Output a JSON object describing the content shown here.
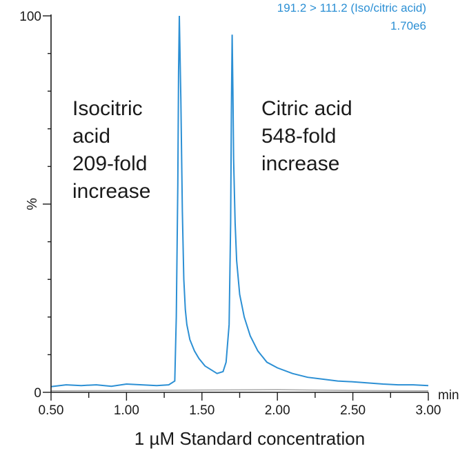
{
  "colors": {
    "trace": "#2b8fd4",
    "baseline": "#a9a9a9",
    "axis": "#1a1a1a"
  },
  "chart_data": {
    "type": "line",
    "title": "",
    "xlabel": "1 µM Standard concentration",
    "x_unit": "min",
    "ylabel": "%",
    "xlim": [
      0.5,
      3.0
    ],
    "ylim": [
      0,
      100
    ],
    "x_tick_labels": [
      "0.50",
      "1.00",
      "1.50",
      "2.00",
      "2.50",
      "3.00"
    ],
    "y_tick_labels": [
      "0",
      "100"
    ],
    "grid": false,
    "trace_label": {
      "transition": "191.2 > 111.2 (Iso/citric acid)",
      "intensity": "1.70e6"
    },
    "annotations": [
      {
        "lines": [
          "Isocitric",
          "acid",
          "209-fold",
          "increase"
        ]
      },
      {
        "lines": [
          "Citric acid",
          "548-fold",
          "increase"
        ]
      }
    ],
    "series": [
      {
        "x": [
          0.5,
          0.6,
          0.7,
          0.8,
          0.9,
          1.0,
          1.1,
          1.2,
          1.28,
          1.32,
          1.33,
          1.34,
          1.345,
          1.35,
          1.36,
          1.37,
          1.38,
          1.39,
          1.4,
          1.42,
          1.45,
          1.48,
          1.52,
          1.56,
          1.6,
          1.64,
          1.66,
          1.68,
          1.69,
          1.695,
          1.7,
          1.705,
          1.71,
          1.72,
          1.73,
          1.75,
          1.78,
          1.82,
          1.87,
          1.93,
          2.0,
          2.1,
          2.2,
          2.3,
          2.4,
          2.5,
          2.6,
          2.7,
          2.8,
          2.9,
          3.0
        ],
        "y": [
          1.5,
          2.0,
          1.8,
          2.0,
          1.6,
          2.2,
          2.0,
          1.8,
          2.0,
          3.0,
          20,
          55,
          85,
          100,
          78,
          48,
          30,
          22,
          18,
          14,
          11,
          9,
          7,
          6,
          5,
          5.5,
          8,
          18,
          45,
          75,
          95,
          80,
          62,
          45,
          35,
          26,
          20,
          15,
          11,
          8,
          6.5,
          5,
          4,
          3.5,
          3,
          2.8,
          2.5,
          2.2,
          2.0,
          2.0,
          1.8
        ]
      },
      {
        "x": [
          0.5,
          1.0,
          1.5,
          2.0,
          2.5,
          3.0
        ],
        "y": [
          0.4,
          0.5,
          0.6,
          0.7,
          0.5,
          0.4
        ]
      }
    ]
  }
}
